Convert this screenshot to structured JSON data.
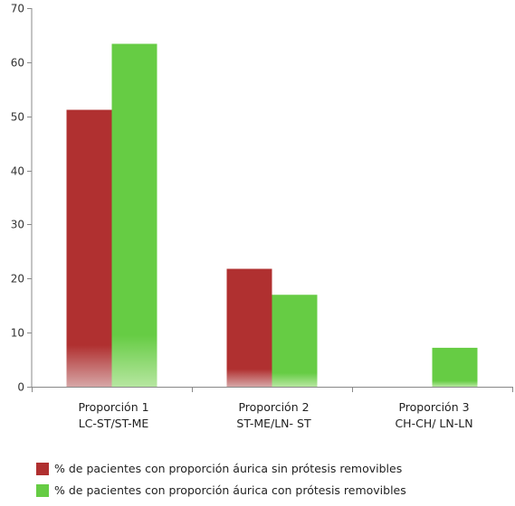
{
  "chart_data": {
    "type": "bar",
    "categories": [
      [
        "Proporción 1",
        "LC-ST/ST-ME"
      ],
      [
        "Proporción 2",
        "ST-ME/LN- ST"
      ],
      [
        "Proporción 3",
        "CH-CH/ LN-LN"
      ]
    ],
    "series": [
      {
        "name": "% de pacientes con proporción áurica sin prótesis removibles",
        "color": "#b03030",
        "values": [
          51.2,
          21.8,
          0
        ]
      },
      {
        "name": "% de pacientes con proporción áurica con prótesis removibles",
        "color": "#66cc44",
        "values": [
          63.4,
          17.0,
          7.2
        ]
      }
    ],
    "ylim": [
      0,
      70
    ],
    "yticks": [
      0,
      10,
      20,
      30,
      40,
      50,
      60,
      70
    ],
    "grid": false,
    "legend_position": "bottom"
  }
}
